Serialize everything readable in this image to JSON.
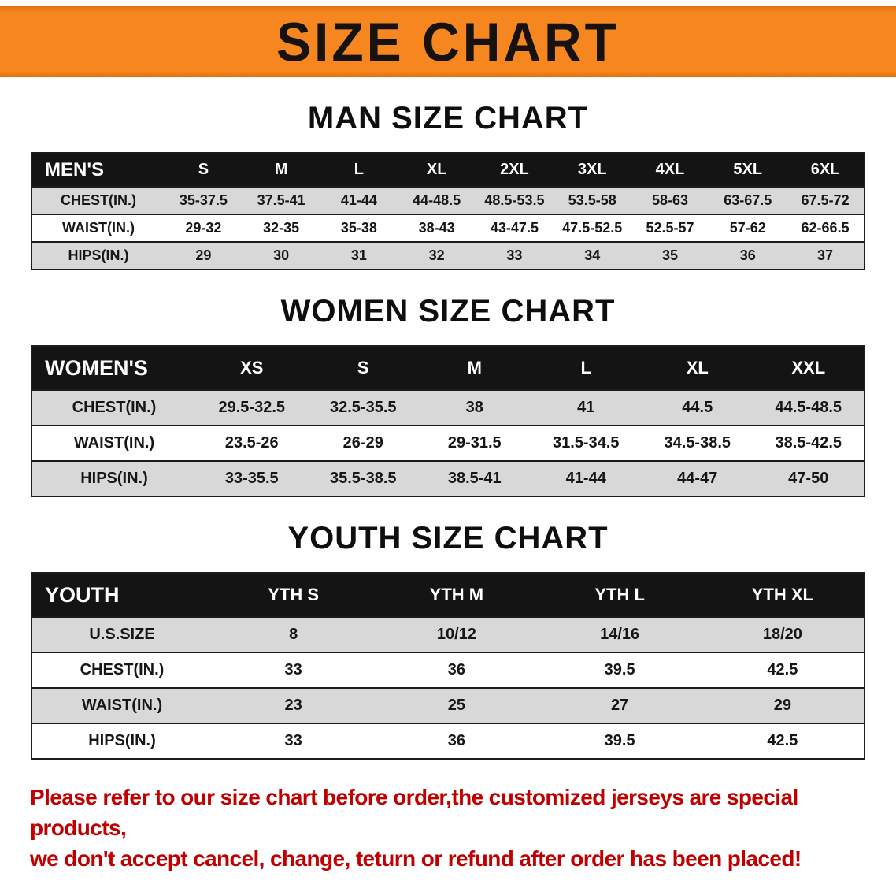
{
  "banner": {
    "title": "SIZE CHART"
  },
  "colors": {
    "accent_orange": "#f6861f",
    "accent_orange_dark": "#e2720d",
    "table_header_black": "#141414",
    "row_gray": "#d8d8d8",
    "disclaimer_red": "#c00000"
  },
  "sections": [
    {
      "key": "men",
      "heading": "MAN SIZE CHART",
      "table": {
        "corner": "MEN'S",
        "columns": [
          "S",
          "M",
          "L",
          "XL",
          "2XL",
          "3XL",
          "4XL",
          "5XL",
          "6XL"
        ],
        "rows": [
          {
            "label": "CHEST(IN.)",
            "values": [
              "35-37.5",
              "37.5-41",
              "41-44",
              "44-48.5",
              "48.5-53.5",
              "53.5-58",
              "58-63",
              "63-67.5",
              "67.5-72"
            ]
          },
          {
            "label": "WAIST(IN.)",
            "values": [
              "29-32",
              "32-35",
              "35-38",
              "38-43",
              "43-47.5",
              "47.5-52.5",
              "52.5-57",
              "57-62",
              "62-66.5"
            ]
          },
          {
            "label": "HIPS(IN.)",
            "values": [
              "29",
              "30",
              "31",
              "32",
              "33",
              "34",
              "35",
              "36",
              "37"
            ]
          }
        ]
      }
    },
    {
      "key": "women",
      "heading": "WOMEN SIZE CHART",
      "table": {
        "corner": "WOMEN'S",
        "columns": [
          "XS",
          "S",
          "M",
          "L",
          "XL",
          "XXL"
        ],
        "rows": [
          {
            "label": "CHEST(IN.)",
            "values": [
              "29.5-32.5",
              "32.5-35.5",
              "38",
              "41",
              "44.5",
              "44.5-48.5"
            ]
          },
          {
            "label": "WAIST(IN.)",
            "values": [
              "23.5-26",
              "26-29",
              "29-31.5",
              "31.5-34.5",
              "34.5-38.5",
              "38.5-42.5"
            ]
          },
          {
            "label": "HIPS(IN.)",
            "values": [
              "33-35.5",
              "35.5-38.5",
              "38.5-41",
              "41-44",
              "44-47",
              "47-50"
            ]
          }
        ]
      }
    },
    {
      "key": "youth",
      "heading": "YOUTH SIZE CHART",
      "table": {
        "corner": "YOUTH",
        "columns": [
          "YTH S",
          "YTH M",
          "YTH L",
          "YTH XL"
        ],
        "rows": [
          {
            "label": "U.S.SIZE",
            "values": [
              "8",
              "10/12",
              "14/16",
              "18/20"
            ]
          },
          {
            "label": "CHEST(IN.)",
            "values": [
              "33",
              "36",
              "39.5",
              "42.5"
            ]
          },
          {
            "label": "WAIST(IN.)",
            "values": [
              "23",
              "25",
              "27",
              "29"
            ]
          },
          {
            "label": "HIPS(IN.)",
            "values": [
              "33",
              "36",
              "39.5",
              "42.5"
            ]
          }
        ]
      }
    }
  ],
  "disclaimer": {
    "line1": "Please refer to our size chart before order,the customized jerseys are special products,",
    "line2": "we don't accept cancel, change, teturn or refund after order has been placed!"
  }
}
